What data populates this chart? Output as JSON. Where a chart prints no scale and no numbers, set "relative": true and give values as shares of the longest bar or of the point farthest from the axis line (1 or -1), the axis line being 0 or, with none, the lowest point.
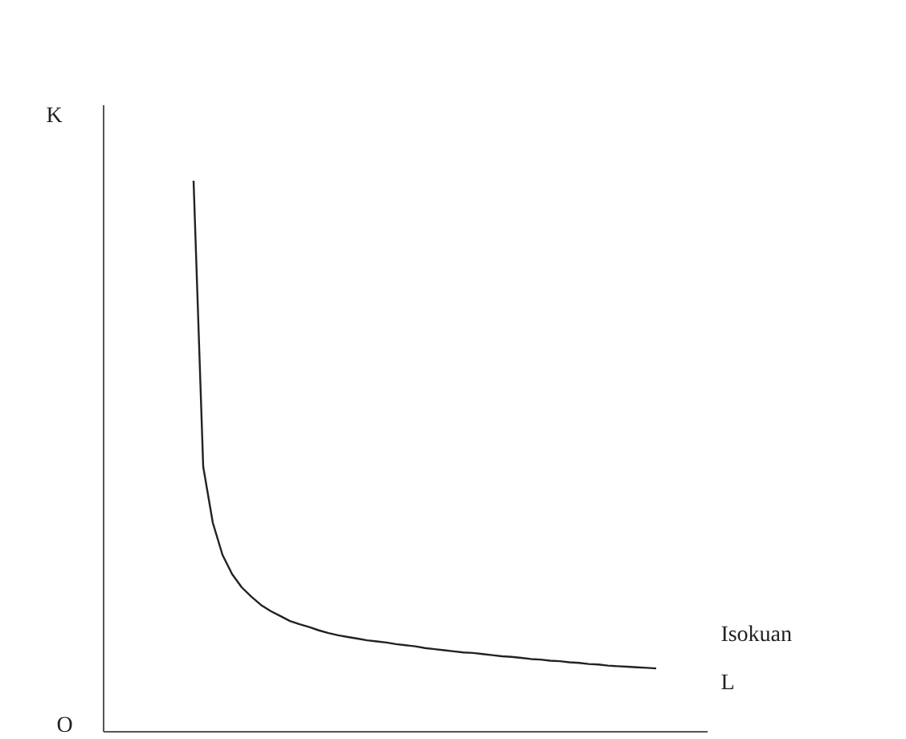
{
  "chart_data": {
    "type": "line",
    "relative": true,
    "xlabel": "L",
    "ylabel": "K",
    "annotations": [
      "Isokuan",
      "O"
    ],
    "color": "#222222",
    "categories": [
      null,
      null,
      null,
      null,
      null,
      null,
      null,
      null,
      null,
      null,
      null,
      null,
      null,
      null,
      null,
      null,
      null,
      null,
      null,
      null,
      null,
      null,
      null,
      null,
      null,
      null,
      null,
      null,
      null,
      null,
      null,
      null,
      null,
      null,
      null,
      null,
      null,
      null,
      null,
      null,
      null,
      null,
      null,
      null,
      null,
      null,
      null,
      null,
      null,
      null,
      null,
      null,
      null,
      null,
      null,
      null,
      null,
      null,
      null,
      null,
      null,
      null,
      null
    ],
    "values": [
      null,
      null,
      null,
      null,
      null,
      null,
      null,
      null,
      null,
      1,
      0.481,
      0.379,
      0.321,
      0.286,
      0.262,
      0.245,
      0.23,
      0.219,
      0.21,
      0.201,
      0.195,
      0.19,
      0.184,
      0.179,
      0.175,
      0.172,
      0.169,
      0.166,
      0.164,
      0.162,
      0.159,
      0.157,
      0.155,
      0.152,
      0.15,
      0.148,
      0.146,
      0.144,
      0.143,
      0.141,
      0.139,
      0.137,
      0.136,
      0.134,
      0.132,
      0.131,
      0.129,
      0.128,
      0.126,
      0.125,
      0.123,
      0.122,
      0.12,
      0.119,
      0.118,
      0.117,
      0.116,
      0.115,
      null,
      null,
      null,
      null,
      null
    ]
  }
}
